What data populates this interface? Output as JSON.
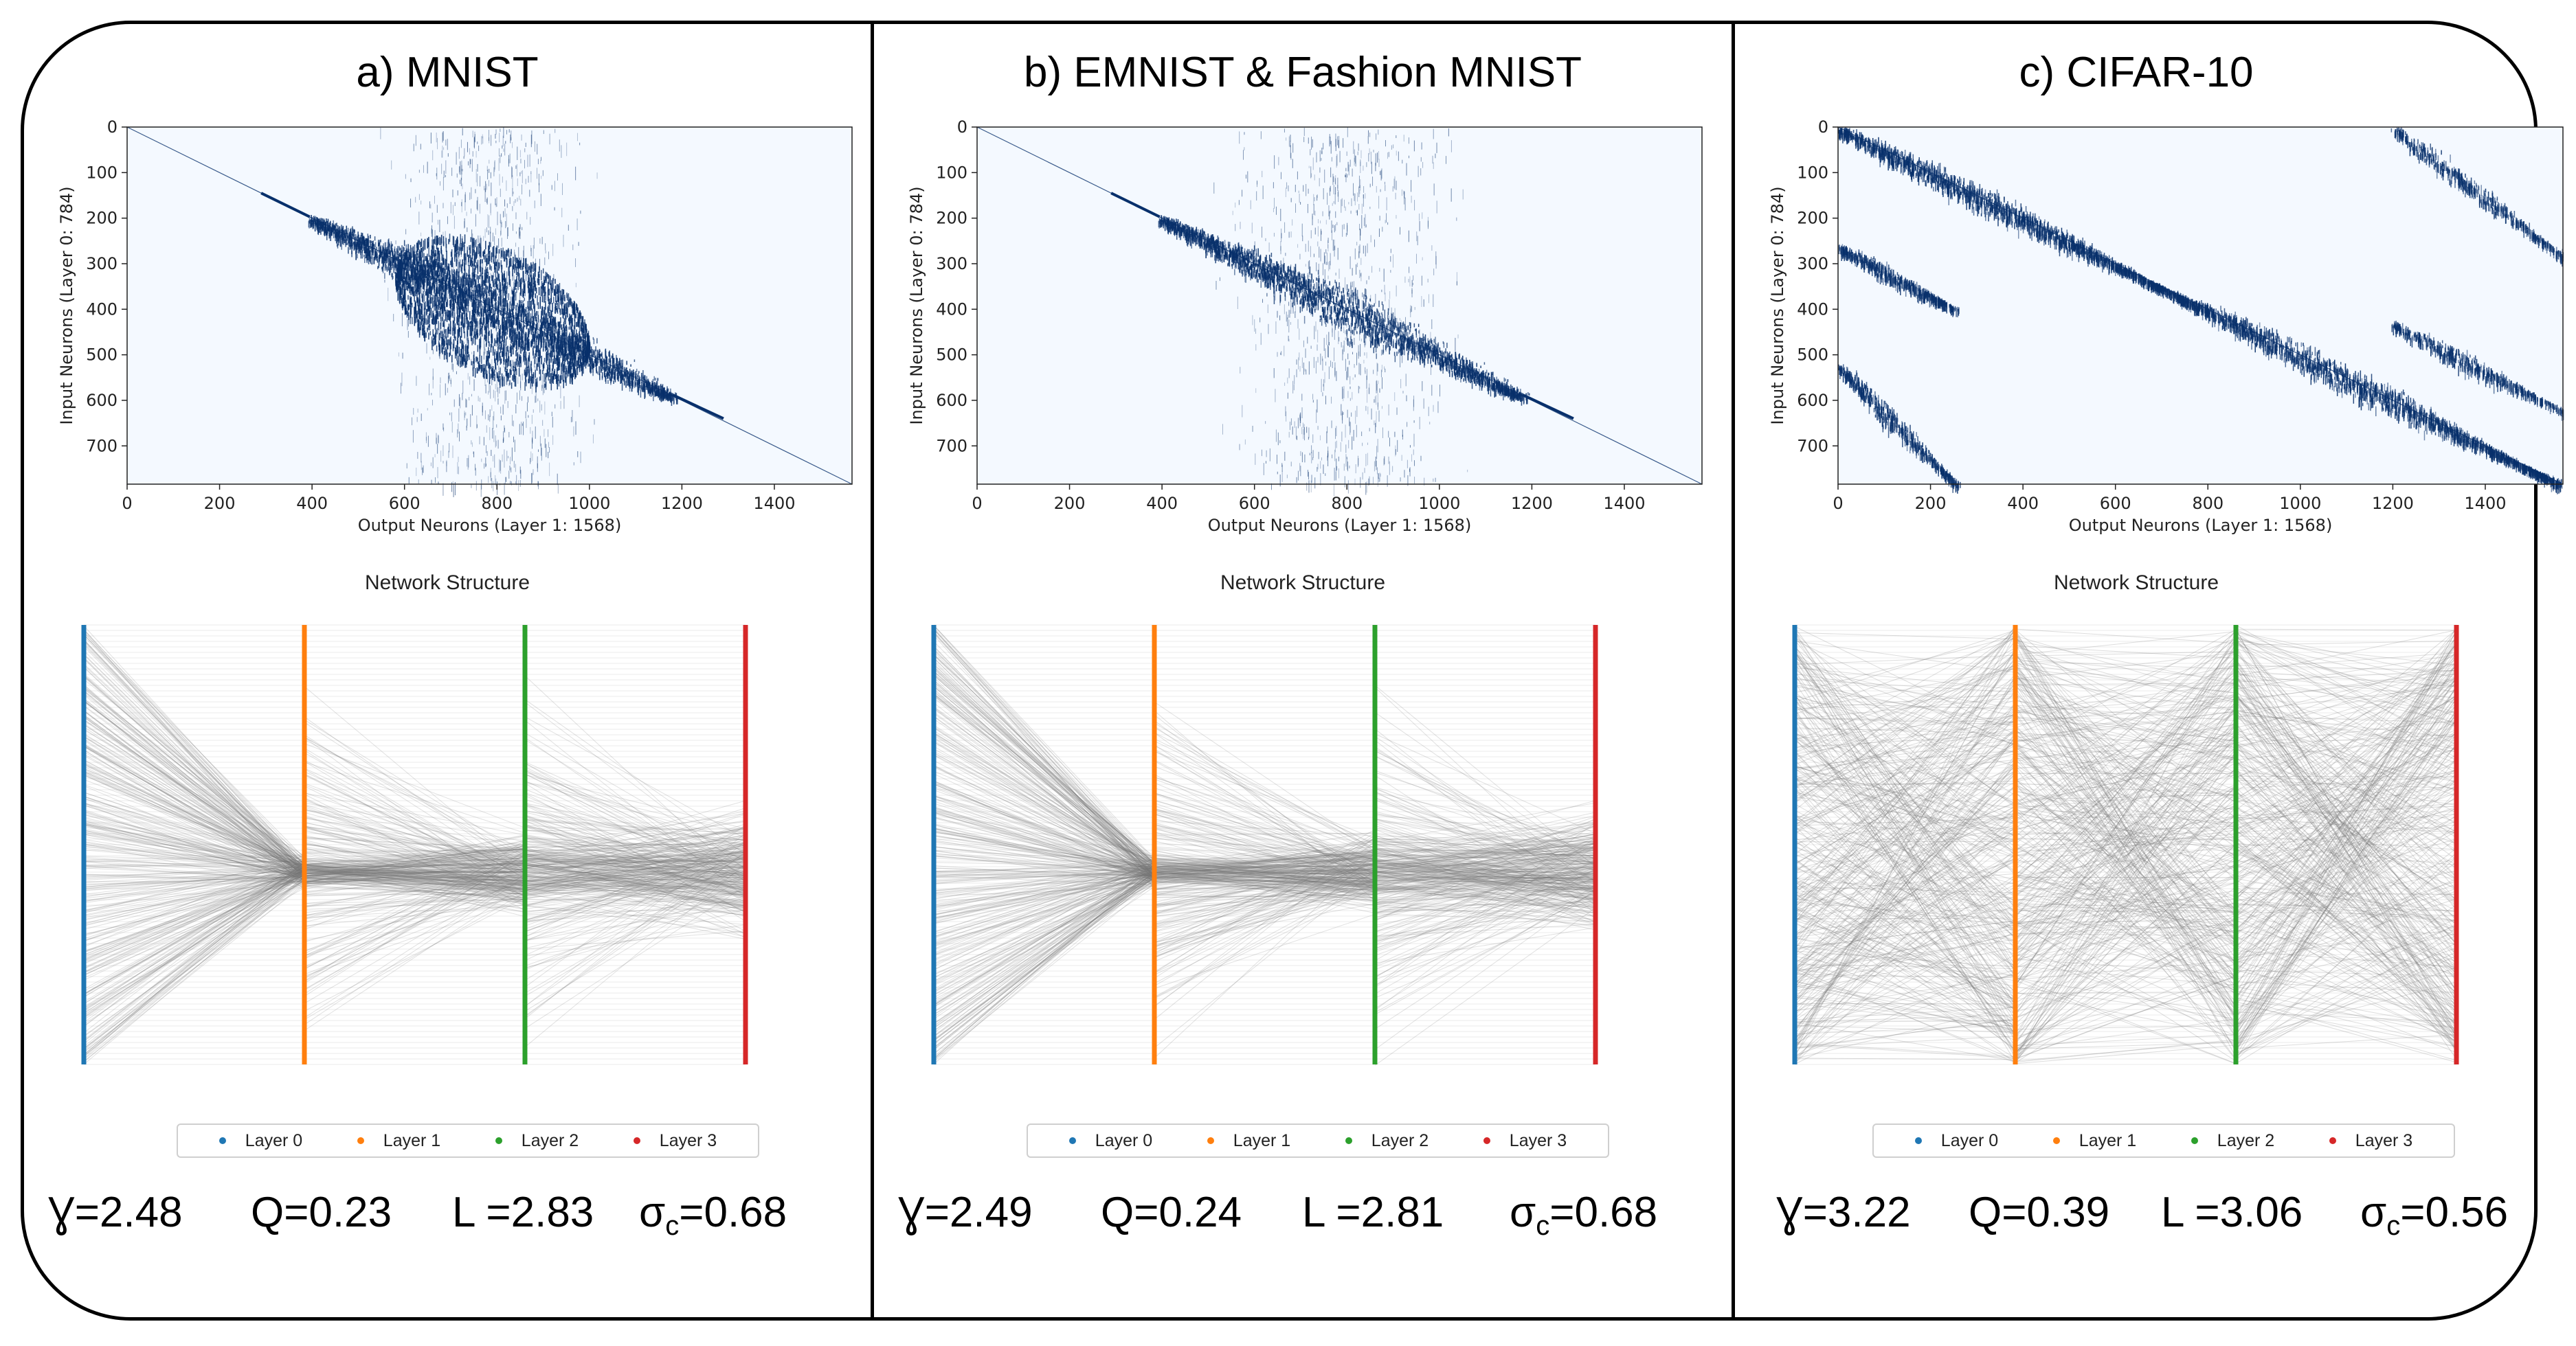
{
  "panels": [
    {
      "title": "a) MNIST",
      "heatmap": {
        "xlabel": "Output Neurons (Layer 1: 1568)",
        "ylabel": "Input Neurons (Layer 0: 784)",
        "xlim": [
          0,
          1568
        ],
        "ylim": [
          784,
          0
        ],
        "xticks": [
          0,
          200,
          400,
          600,
          800,
          1000,
          1200,
          1400
        ],
        "yticks": [
          0,
          100,
          200,
          300,
          400,
          500,
          600,
          700
        ],
        "pattern": "diagonal-lens",
        "cmap": [
          "#f4f9ff",
          "#08306b"
        ]
      },
      "network": {
        "title": "Network Structure",
        "pattern": "converge-center"
      },
      "legend": [
        "Layer 0",
        "Layer 1",
        "Layer 2",
        "Layer 3"
      ],
      "metrics": {
        "gamma": "Ɣ=2.48",
        "q": "Q=0.23",
        "l": "L =2.83",
        "sigma_main": "σ",
        "sigma_sub": "c",
        "sigma_val": "=0.68"
      }
    },
    {
      "title": "b) EMNIST & Fashion MNIST",
      "heatmap": {
        "xlabel": "Output Neurons (Layer 1: 1568)",
        "ylabel": "Input Neurons (Layer 0: 784)",
        "xlim": [
          0,
          1568
        ],
        "ylim": [
          784,
          0
        ],
        "xticks": [
          0,
          200,
          400,
          600,
          800,
          1000,
          1200,
          1400
        ],
        "yticks": [
          0,
          100,
          200,
          300,
          400,
          500,
          600,
          700
        ],
        "pattern": "diagonal-band",
        "cmap": [
          "#f4f9ff",
          "#08306b"
        ]
      },
      "network": {
        "title": "Network Structure",
        "pattern": "converge-center"
      },
      "legend": [
        "Layer 0",
        "Layer 1",
        "Layer 2",
        "Layer 3"
      ],
      "metrics": {
        "gamma": "Ɣ=2.49",
        "q": "Q=0.24",
        "l": "L =2.81",
        "sigma_main": "σ",
        "sigma_sub": "c",
        "sigma_val": "=0.68"
      }
    },
    {
      "title": "c) CIFAR-10",
      "heatmap": {
        "xlabel": "Output Neurons (Layer 1: 1568)",
        "ylabel": "Input Neurons (Layer 0: 784)",
        "xlim": [
          0,
          1568
        ],
        "ylim": [
          784,
          0
        ],
        "xticks": [
          0,
          200,
          400,
          600,
          800,
          1000,
          1200,
          1400
        ],
        "yticks": [
          0,
          100,
          200,
          300,
          400,
          500,
          600,
          700
        ],
        "pattern": "wrapped-diagonal",
        "cmap": [
          "#f4f9ff",
          "#08306b"
        ]
      },
      "network": {
        "title": "Network Structure",
        "pattern": "crossing"
      },
      "legend": [
        "Layer 0",
        "Layer 1",
        "Layer 2",
        "Layer 3"
      ],
      "metrics": {
        "gamma": "Ɣ=3.22",
        "q": "Q=0.39",
        "l": "L =3.06",
        "sigma_main": "σ",
        "sigma_sub": "c",
        "sigma_val": "=0.56"
      }
    }
  ],
  "layer_colors": [
    "#1f77b4",
    "#ff7f0e",
    "#2ca02c",
    "#d62728"
  ],
  "chart_data": [
    {
      "type": "heatmap",
      "title": "a) MNIST",
      "xlabel": "Output Neurons (Layer 1: 1568)",
      "ylabel": "Input Neurons (Layer 0: 784)",
      "x_range": [
        0,
        1568
      ],
      "y_range": [
        0,
        784
      ],
      "y_inverted": true,
      "grid": false
    },
    {
      "type": "heatmap",
      "title": "b) EMNIST & Fashion MNIST",
      "xlabel": "Output Neurons (Layer 1: 1568)",
      "ylabel": "Input Neurons (Layer 0: 784)",
      "x_range": [
        0,
        1568
      ],
      "y_range": [
        0,
        784
      ],
      "y_inverted": true,
      "grid": false
    },
    {
      "type": "heatmap",
      "title": "c) CIFAR-10",
      "xlabel": "Output Neurons (Layer 1: 1568)",
      "ylabel": "Input Neurons (Layer 0: 784)",
      "x_range": [
        0,
        1568
      ],
      "y_range": [
        0,
        784
      ],
      "y_inverted": true,
      "grid": false
    }
  ]
}
